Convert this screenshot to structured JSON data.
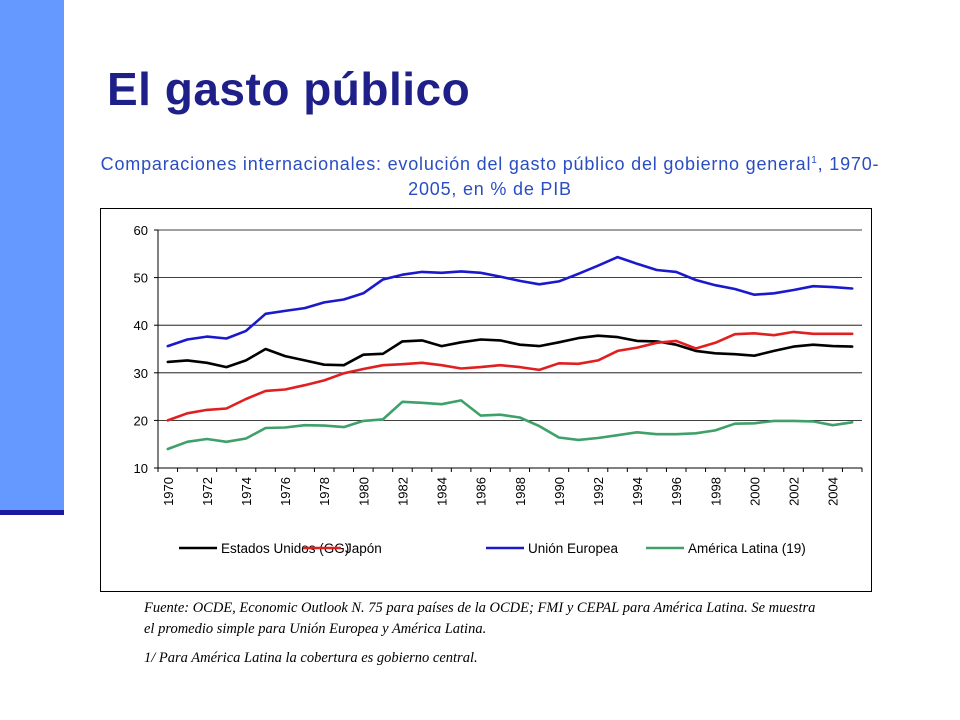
{
  "slide": {
    "title": "El gasto público",
    "subtitle_main": "Comparaciones internacionales: evolución del gasto público del gobierno general",
    "subtitle_sup": "1",
    "subtitle_tail": ", 1970-2005, en % de PIB",
    "source_note": "Fuente: OCDE, Economic Outlook N. 75 para países de la OCDE; FMI y CEPAL para América Latina. Se muestra el promedio simple para Unión Europea y América Latina.",
    "footnote": "1/ Para América Latina la cobertura es gobierno central.",
    "accent_color": "#6699ff",
    "title_color": "#1f1f8a",
    "subtitle_color": "#2a4ec2"
  },
  "chart_data": {
    "type": "line",
    "title": "",
    "xlabel": "",
    "ylabel": "",
    "ylim": [
      10,
      60
    ],
    "yticks": [
      10,
      20,
      30,
      40,
      50,
      60
    ],
    "grid": true,
    "legend_position": "bottom",
    "x": [
      1970,
      1971,
      1972,
      1973,
      1974,
      1975,
      1976,
      1977,
      1978,
      1979,
      1980,
      1981,
      1982,
      1983,
      1984,
      1985,
      1986,
      1987,
      1988,
      1989,
      1990,
      1991,
      1992,
      1993,
      1994,
      1995,
      1996,
      1997,
      1998,
      1999,
      2000,
      2001,
      2002,
      2003,
      2004,
      2005
    ],
    "xtick_labels": [
      "1970",
      "1972",
      "1974",
      "1976",
      "1978",
      "1980",
      "1982",
      "1984",
      "1986",
      "1988",
      "1990",
      "1992",
      "1994",
      "1996",
      "1998",
      "2000",
      "2002",
      "2004"
    ],
    "series": [
      {
        "name": "Estados Unidos (GG)",
        "color": "#000000",
        "values": [
          32.3,
          32.6,
          32.1,
          31.2,
          32.6,
          35.0,
          33.5,
          32.6,
          31.7,
          31.6,
          33.8,
          34.0,
          36.6,
          36.8,
          35.6,
          36.4,
          37.0,
          36.8,
          35.9,
          35.6,
          36.4,
          37.3,
          37.8,
          37.5,
          36.7,
          36.6,
          35.9,
          34.6,
          34.1,
          33.9,
          33.6,
          34.6,
          35.5,
          35.9,
          35.6,
          35.5
        ]
      },
      {
        "name": "Japón",
        "color": "#e02020",
        "values": [
          20.0,
          21.5,
          22.2,
          22.5,
          24.5,
          26.2,
          26.5,
          27.4,
          28.4,
          29.9,
          30.8,
          31.6,
          31.8,
          32.1,
          31.6,
          30.9,
          31.2,
          31.6,
          31.2,
          30.6,
          32.0,
          31.9,
          32.6,
          34.6,
          35.3,
          36.3,
          36.7,
          35.1,
          36.3,
          38.1,
          38.3,
          37.9,
          38.6,
          38.2,
          38.2,
          38.2
        ]
      },
      {
        "name": "Unión Europea",
        "color": "#1a1acc",
        "values": [
          35.6,
          37.0,
          37.6,
          37.2,
          38.8,
          42.4,
          43.0,
          43.6,
          44.8,
          45.4,
          46.7,
          49.6,
          50.6,
          51.2,
          51.0,
          51.3,
          51.0,
          50.2,
          49.3,
          48.6,
          49.2,
          50.8,
          52.5,
          54.3,
          52.9,
          51.6,
          51.2,
          49.5,
          48.4,
          47.6,
          46.4,
          46.7,
          47.4,
          48.2,
          48.0,
          47.7
        ]
      },
      {
        "name": "América Latina (19)",
        "color": "#3fa06a",
        "values": [
          14.0,
          15.5,
          16.1,
          15.5,
          16.2,
          18.4,
          18.5,
          19.0,
          18.9,
          18.6,
          19.9,
          20.2,
          23.9,
          23.7,
          23.4,
          24.2,
          21.0,
          21.2,
          20.6,
          18.8,
          16.4,
          15.9,
          16.3,
          16.9,
          17.5,
          17.1,
          17.1,
          17.3,
          17.9,
          19.3,
          19.4,
          19.9,
          19.9,
          19.8,
          19.0,
          19.6
        ]
      }
    ]
  }
}
